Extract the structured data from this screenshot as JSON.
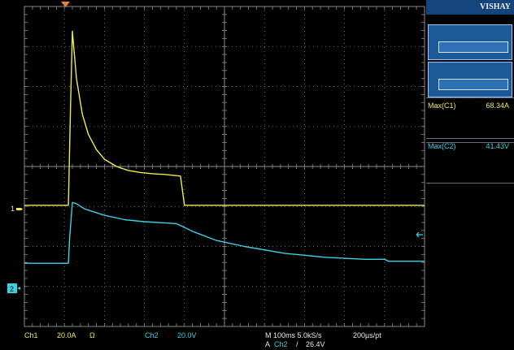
{
  "panel": {
    "brand": "VISHAY",
    "measurements": [
      {
        "label": "Max(C1)",
        "value": "68.34A"
      },
      {
        "label": "Max(C2)",
        "value": "41.43V"
      }
    ]
  },
  "markers": {
    "ch1": "1",
    "ch2": "2"
  },
  "status": {
    "ch1_label": "Ch1",
    "ch1_scale": "20.0A",
    "ch1_coupling": "Ω",
    "ch2_label": "Ch2",
    "ch2_scale": "20.0V",
    "timebase": "M 100ms 5.0kS/s",
    "record": "200µs/pt",
    "trigger_prefix": "A",
    "trigger_source": "Ch2",
    "trigger_slope": "/",
    "trigger_level": "26.4V"
  },
  "colors": {
    "ch1": "#f2e94e",
    "ch2": "#39d2e2",
    "grid": "#8a8a8a",
    "panel_title": "#15437c"
  },
  "chart_data": {
    "type": "line",
    "grid": true,
    "divisions": {
      "x": 10,
      "y": 8
    },
    "ylim": [
      -4,
      4
    ],
    "series": [
      {
        "name": "Ch1",
        "x": [
          0.0,
          1.1,
          1.15,
          1.2,
          1.3,
          1.45,
          1.6,
          1.8,
          2.0,
          2.3,
          2.6,
          2.9,
          3.2,
          3.5,
          3.9,
          4.0,
          10.0
        ],
        "y": [
          -0.97,
          -0.97,
          1.4,
          3.38,
          2.2,
          1.3,
          0.8,
          0.42,
          0.18,
          0.0,
          -0.1,
          -0.15,
          -0.18,
          -0.2,
          -0.24,
          -0.97,
          -0.97
        ]
      },
      {
        "name": "Ch2",
        "x": [
          0.0,
          1.1,
          1.13,
          1.2,
          1.3,
          1.5,
          2.0,
          2.5,
          3.0,
          3.5,
          3.8,
          4.2,
          4.8,
          5.5,
          6.5,
          7.5,
          8.5,
          9.0,
          9.1,
          10.0
        ],
        "y": [
          -2.42,
          -2.42,
          -1.8,
          -0.9,
          -0.93,
          -1.06,
          -1.22,
          -1.33,
          -1.38,
          -1.41,
          -1.43,
          -1.62,
          -1.85,
          -2.0,
          -2.17,
          -2.27,
          -2.32,
          -2.32,
          -2.37,
          -2.37
        ]
      }
    ]
  }
}
